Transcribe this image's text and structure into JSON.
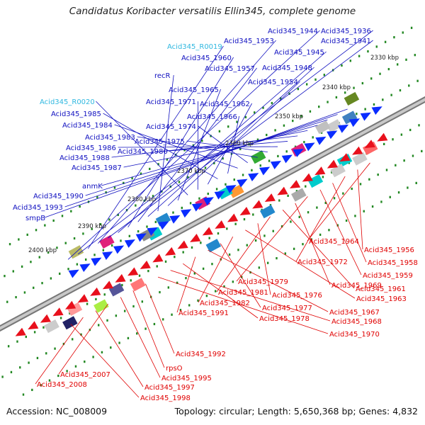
{
  "title": "Candidatus Koribacter versatilis Ellin345, complete genome",
  "footer": {
    "accession": "Accession: NC_008009",
    "summary": "Topology: circular; Length: 5,650,368 bp; Genes: 4,832"
  },
  "colors": {
    "forward_label": "#1010c0",
    "rna_label": "#30b8e0",
    "reverse_label": "#e00000",
    "backbone": "#999999",
    "forward_arrow": "#0a2cff",
    "reverse_arrow": "#e8101c",
    "dots": "#228822"
  },
  "scale_labels": [
    "2330 kbp",
    "2340 kbp",
    "2350 kbp",
    "2360 kbp",
    "2370 kbp",
    "2380 kbp",
    "2390 kbp",
    "2400 kbp"
  ],
  "forward_labels": [
    "Acid345_1944",
    "Acid345_1936",
    "Acid345_R0019",
    "Acid345_1953",
    "Acid345_1941",
    "Acid345_1945",
    "Acid345_1960",
    "Acid345_1957",
    "Acid345_1948",
    "recR",
    "Acid345_1954",
    "Acid345_1965",
    "Acid345_R0020",
    "Acid345_1971",
    "Acid345_1962",
    "Acid345_1985",
    "Acid345_1966",
    "Acid345_1984",
    "Acid345_1974",
    "Acid345_1983",
    "Acid345_1975",
    "Acid345_1986",
    "Acid345_1980",
    "Acid345_1988",
    "Acid345_1987",
    "anmK",
    "Acid345_1990",
    "Acid345_1993",
    "smpB"
  ],
  "reverse_labels": [
    "Acid345_1964",
    "Acid345_1956",
    "Acid345_1972",
    "Acid345_1958",
    "Acid345_1959",
    "Acid345_1979",
    "Acid345_1969",
    "Acid345_1961",
    "Acid345_1981",
    "Acid345_1976",
    "Acid345_1963",
    "Acid345_1982",
    "Acid345_1977",
    "Acid345_1967",
    "Acid345_1991",
    "Acid345_1978",
    "Acid345_1968",
    "Acid345_1970",
    "Acid345_1992",
    "rpsO",
    "Acid345_1995",
    "Acid345_2007",
    "Acid345_1997",
    "Acid345_2008",
    "Acid345_1998"
  ]
}
